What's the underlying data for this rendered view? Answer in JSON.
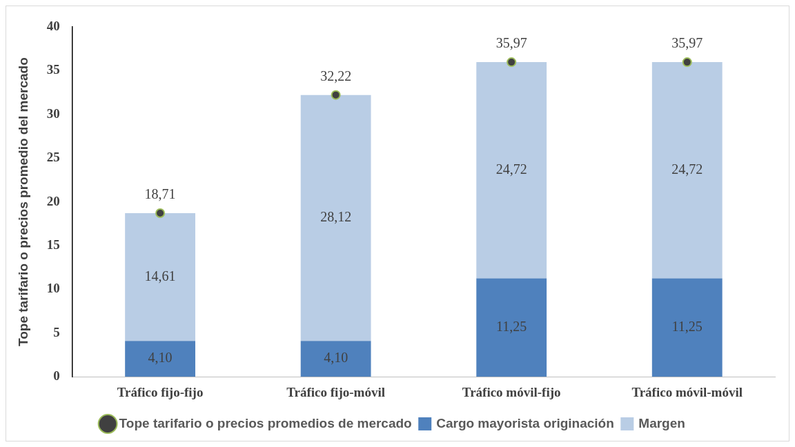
{
  "chart_data": {
    "type": "bar",
    "stacked": true,
    "ylabel": "Tope tarifario o precios promedio del mercado",
    "categories": [
      "Tráfico fijo-fijo",
      "Tráfico fijo-móvil",
      "Tráfico móvil-fijo",
      "Tráfico móvil-móvil"
    ],
    "series": [
      {
        "name": "Cargo mayorista originación",
        "color": "#4f81bd",
        "values": [
          4.1,
          4.1,
          11.25,
          11.25
        ],
        "value_labels": [
          "4,10",
          "4,10",
          "11,25",
          "11,25"
        ]
      },
      {
        "name": "Margen",
        "color": "#b9cde5",
        "values": [
          14.61,
          28.12,
          24.72,
          24.72
        ],
        "value_labels": [
          "14,61",
          "28,12",
          "24,72",
          "24,72"
        ]
      },
      {
        "name": "Tope tarifario o precios promedios de mercado",
        "type": "scatter",
        "marker": "circle",
        "color": "#404040",
        "values": [
          18.71,
          32.22,
          35.97,
          35.97
        ],
        "value_labels": [
          "18,71",
          "32,22",
          "35,97",
          "35,97"
        ]
      }
    ],
    "ylim": [
      0,
      40
    ],
    "yticks": [
      0,
      5,
      10,
      15,
      20,
      25,
      30,
      35,
      40
    ],
    "grid": false,
    "legend": "bottom"
  }
}
